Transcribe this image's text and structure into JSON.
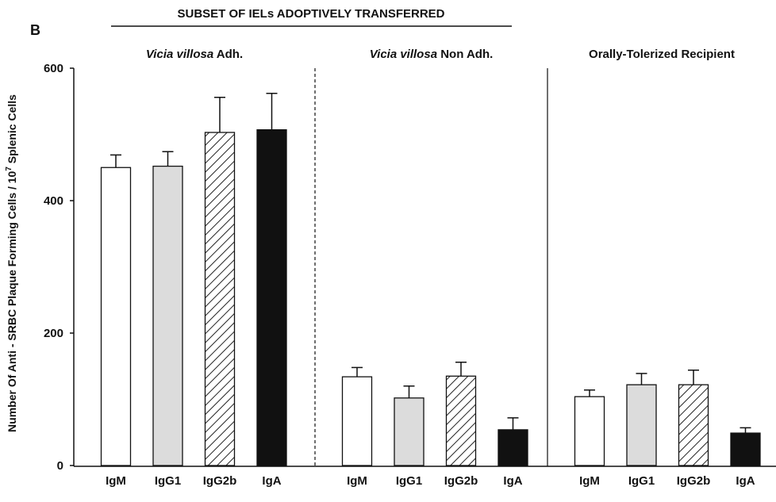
{
  "chart_data": {
    "type": "bar",
    "title": "SUBSET OF IELs ADOPTIVELY TRANSFERRED",
    "panel_label": "B",
    "y_label": {
      "text": "Number Of Anti - SRBC Plaque Forming Cells / 10",
      "superscript": "7",
      "suffix": " Splenic Cells"
    },
    "groups": [
      {
        "italic": "Vicia villosa",
        "title": " Adh."
      },
      {
        "italic": "Vicia villosa",
        "title": " Non Adh."
      },
      {
        "italic": "",
        "title": "Orally-Tolerized Recipient"
      }
    ],
    "series": [
      {
        "name": "IgM",
        "color": "#ffffff",
        "pattern": "solid",
        "values": [
          450,
          134,
          104
        ],
        "errors": [
          19,
          14,
          10
        ]
      },
      {
        "name": "IgG1",
        "color": "#dcdcdc",
        "pattern": "solid",
        "values": [
          452,
          102,
          122
        ],
        "errors": [
          22,
          18,
          17
        ]
      },
      {
        "name": "IgG2b",
        "color": "#222222",
        "pattern": "hatch",
        "values": [
          503,
          135,
          122
        ],
        "errors": [
          53,
          21,
          22
        ]
      },
      {
        "name": "IgA",
        "color": "#111111",
        "pattern": "solid",
        "values": [
          507,
          54,
          49
        ],
        "errors": [
          55,
          18,
          8
        ]
      }
    ],
    "ylim": [
      0,
      600
    ],
    "yticks": [
      0,
      200,
      400,
      600
    ]
  }
}
